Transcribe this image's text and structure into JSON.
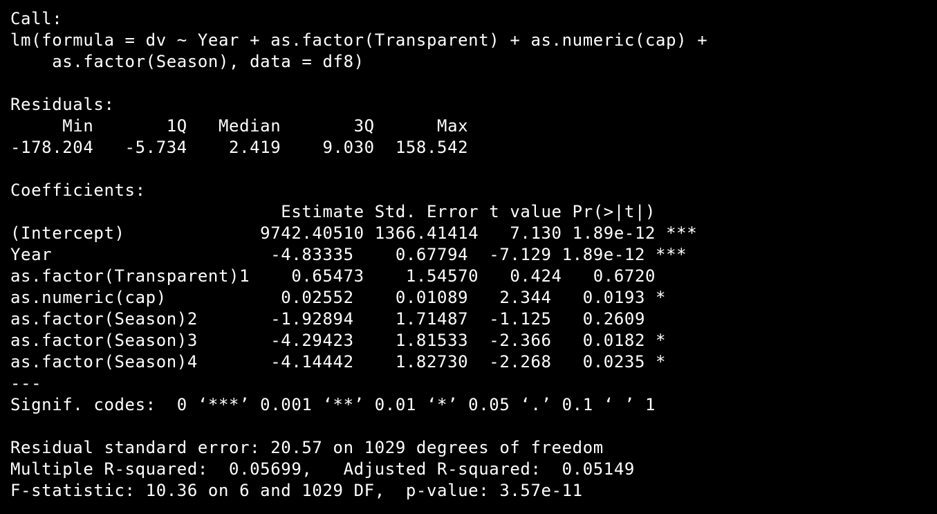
{
  "console": {
    "lines": [
      "Call:",
      "lm(formula = dv ~ Year + as.factor(Transparent) + as.numeric(cap) +",
      "    as.factor(Season), data = df8)",
      "",
      "Residuals:",
      "     Min       1Q   Median       3Q      Max ",
      "-178.204   -5.734    2.419    9.030  158.542 ",
      "",
      "Coefficients:",
      "                          Estimate Std. Error t value Pr(>|t|)    ",
      "(Intercept)             9742.40510 1366.41414   7.130 1.89e-12 ***",
      "Year                     -4.83335    0.67794  -7.129 1.89e-12 ***",
      "as.factor(Transparent)1    0.65473    1.54570   0.424   0.6720    ",
      "as.numeric(cap)           0.02552    0.01089   2.344   0.0193 *  ",
      "as.factor(Season)2       -1.92894    1.71487  -1.125   0.2609    ",
      "as.factor(Season)3       -4.29423    1.81533  -2.366   0.0182 *  ",
      "as.factor(Season)4       -4.14442    1.82730  -2.268   0.0235 *  ",
      "---",
      "Signif. codes:  0 ‘***’ 0.001 ‘**’ 0.01 ‘*’ 0.05 ‘.’ 0.1 ‘ ’ 1",
      "",
      "Residual standard error: 20.57 on 1029 degrees of freedom",
      "Multiple R-squared:  0.05699,\tAdjusted R-squared:  0.05149 ",
      "F-statistic: 10.36 on 6 and 1029 DF,  p-value: 3.57e-11"
    ]
  },
  "colors": {
    "background": "#000000",
    "text": "#ffffff"
  }
}
